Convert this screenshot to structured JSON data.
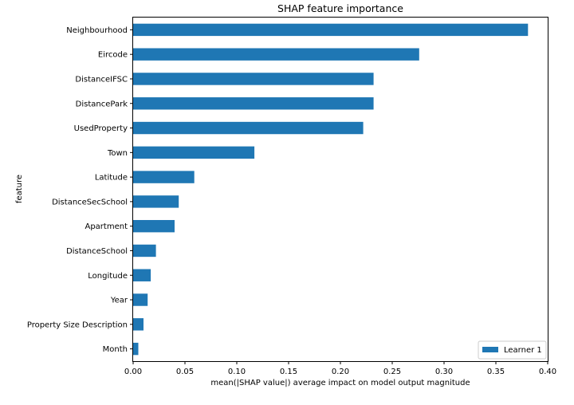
{
  "chart_data": {
    "type": "bar",
    "orientation": "horizontal",
    "title": "SHAP feature importance",
    "xlabel": "mean(|SHAP value|) average impact on model output magnitude",
    "ylabel": "feature",
    "xlim": [
      0,
      0.4
    ],
    "x_ticks": [
      "0.00",
      "0.05",
      "0.10",
      "0.15",
      "0.20",
      "0.25",
      "0.30",
      "0.35",
      "0.40"
    ],
    "categories": [
      "Neighbourhood",
      "Eircode",
      "DistanceIFSC",
      "DistancePark",
      "UsedProperty",
      "Town",
      "Latitude",
      "DistanceSecSchool",
      "Apartment",
      "DistanceSchool",
      "Longitude",
      "Year",
      "Property Size Description",
      "Month"
    ],
    "series": [
      {
        "name": "Learner 1",
        "color": "#1f77b4",
        "values": [
          0.381,
          0.276,
          0.232,
          0.232,
          0.222,
          0.117,
          0.059,
          0.044,
          0.04,
          0.022,
          0.017,
          0.014,
          0.01,
          0.005
        ]
      }
    ],
    "grid": false,
    "legend": "bottom-right"
  }
}
